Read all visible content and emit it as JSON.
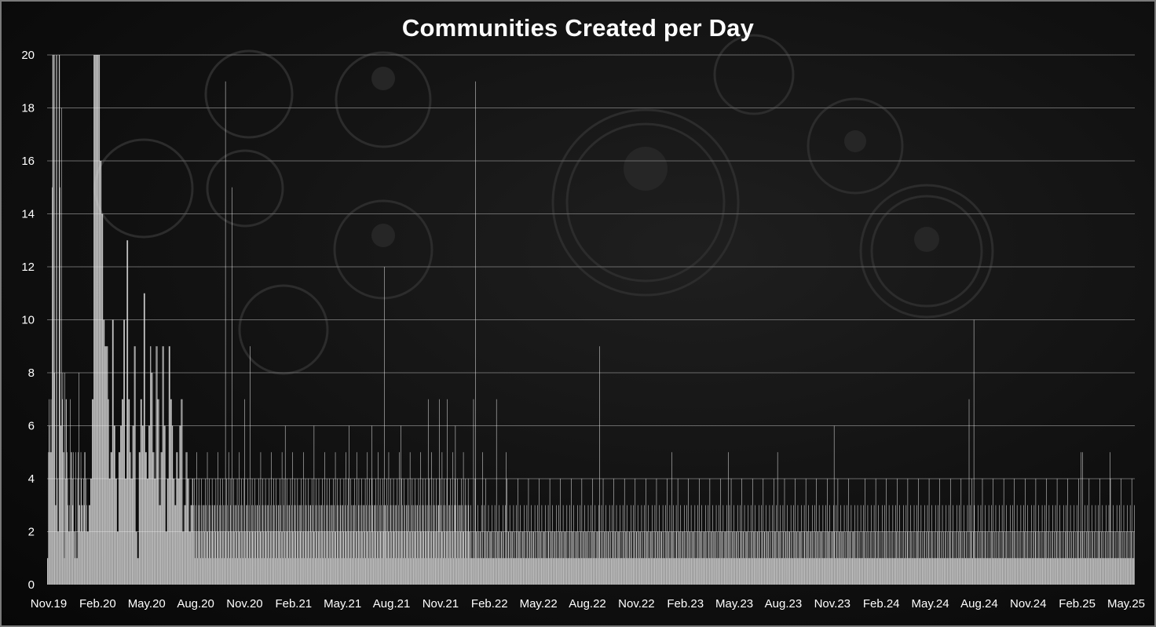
{
  "chart_data": {
    "type": "bar",
    "title": "Communities Created per Day",
    "xlabel": "",
    "ylabel": "",
    "ylim": [
      0,
      20
    ],
    "y_ticks": [
      0,
      2,
      4,
      6,
      8,
      10,
      12,
      14,
      16,
      18,
      20
    ],
    "x_tick_labels": [
      "Nov.19",
      "Feb.20",
      "May.20",
      "Aug.20",
      "Nov.20",
      "Feb.21",
      "May.21",
      "Aug.21",
      "Nov.21",
      "Feb.22",
      "May.22",
      "Aug.22",
      "Nov.22",
      "Feb.23",
      "May.23",
      "Aug.23",
      "Nov.23",
      "Feb.24",
      "May.24",
      "Aug.24",
      "Nov.24",
      "Feb.25",
      "May.25"
    ],
    "x_range": [
      "2019-11-01",
      "2025-05-31"
    ],
    "grid": "horizontal",
    "legend": "none",
    "bar_color": "#ececec",
    "segments": [
      {
        "from": "2019-11-01",
        "to": "2020-01-14",
        "values": [
          1,
          5,
          7,
          6,
          5,
          7,
          5,
          15,
          20,
          20,
          8,
          20,
          3,
          20,
          20,
          4,
          2,
          20,
          20,
          15,
          6,
          18,
          7,
          8,
          5,
          1,
          8,
          4,
          7,
          5,
          4,
          3,
          2,
          3,
          7,
          2,
          5,
          4,
          3,
          5,
          2,
          1,
          5,
          2,
          1,
          4,
          5,
          8,
          3,
          2,
          5,
          4,
          3,
          2,
          4,
          3,
          5,
          2,
          4,
          3
        ]
      },
      {
        "from": "2020-01-15",
        "to": "2020-07-31",
        "values": [
          2,
          3,
          4,
          7,
          20,
          20,
          20,
          20,
          16,
          14,
          10,
          9,
          9,
          7,
          4,
          5,
          10,
          6,
          4,
          2,
          5,
          6,
          7,
          10,
          4,
          13,
          7,
          5,
          4,
          6,
          9,
          2,
          1,
          5,
          7,
          6,
          11,
          5,
          4,
          6,
          9,
          8,
          5,
          4,
          9,
          7,
          3,
          5,
          9,
          6,
          2,
          4,
          9,
          7,
          6,
          4,
          3,
          5,
          4,
          6,
          7,
          2,
          3,
          5,
          4,
          2,
          3,
          4
        ]
      },
      {
        "from": "2020-08-01",
        "to": "2021-12-31",
        "pattern": [
          3,
          2,
          4,
          1,
          3,
          2,
          5,
          2,
          1,
          3,
          4,
          2,
          3,
          1,
          2,
          4,
          3,
          2,
          1,
          3
        ]
      },
      {
        "from": "2022-01-01",
        "to": "2023-12-31",
        "pattern": [
          2,
          1,
          3,
          1,
          2,
          1,
          1,
          3,
          2,
          1,
          4,
          1,
          2,
          2,
          1,
          3,
          1,
          2,
          1,
          2
        ]
      },
      {
        "from": "2024-01-01",
        "to": "2025-05-31",
        "pattern": [
          1,
          2,
          1,
          3,
          1,
          1,
          2,
          1,
          3,
          1,
          2,
          4,
          1,
          1,
          2,
          1,
          3,
          1,
          2,
          1
        ]
      }
    ],
    "spikes": [
      {
        "date": "2020-09-30",
        "value": 19
      },
      {
        "date": "2020-10-12",
        "value": 15
      },
      {
        "date": "2020-11-05",
        "value": 7
      },
      {
        "date": "2020-11-15",
        "value": 9
      },
      {
        "date": "2021-01-20",
        "value": 6
      },
      {
        "date": "2021-03-15",
        "value": 6
      },
      {
        "date": "2021-05-20",
        "value": 6
      },
      {
        "date": "2021-07-01",
        "value": 6
      },
      {
        "date": "2021-07-25",
        "value": 12
      },
      {
        "date": "2021-08-25",
        "value": 6
      },
      {
        "date": "2021-10-15",
        "value": 7
      },
      {
        "date": "2021-11-05",
        "value": 7
      },
      {
        "date": "2021-11-20",
        "value": 7
      },
      {
        "date": "2021-12-05",
        "value": 6
      },
      {
        "date": "2022-01-08",
        "value": 7
      },
      {
        "date": "2022-01-12",
        "value": 19
      },
      {
        "date": "2022-01-25",
        "value": 5
      },
      {
        "date": "2022-02-20",
        "value": 7
      },
      {
        "date": "2022-03-10",
        "value": 5
      },
      {
        "date": "2022-09-01",
        "value": 9
      },
      {
        "date": "2023-01-15",
        "value": 5
      },
      {
        "date": "2023-05-01",
        "value": 5
      },
      {
        "date": "2023-08-01",
        "value": 5
      },
      {
        "date": "2023-11-15",
        "value": 6
      },
      {
        "date": "2024-07-25",
        "value": 7
      },
      {
        "date": "2024-08-03",
        "value": 10
      },
      {
        "date": "2025-02-20",
        "value": 5
      },
      {
        "date": "2025-02-23",
        "value": 5
      },
      {
        "date": "2025-04-15",
        "value": 5
      },
      {
        "date": "2025-05-18",
        "value": 3
      }
    ]
  }
}
